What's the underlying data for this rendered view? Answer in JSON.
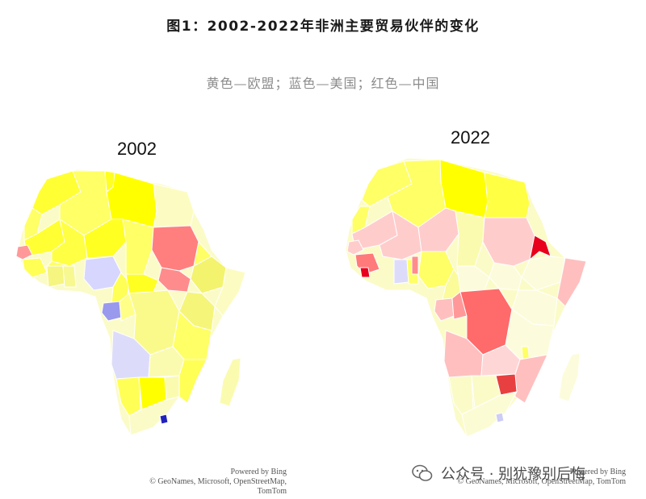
{
  "title": "图1：2002-2022年非洲主要贸易伙伴的变化",
  "subtitle": "黄色—欧盟；蓝色—美国；红色—中国",
  "maps": [
    {
      "year": "2002",
      "credit_line1": "Powered by Bing",
      "credit_line2": "© GeoNames, Microsoft, OpenStreetMap, TomTom"
    },
    {
      "year": "2022",
      "credit_line1": "Powered by Bing",
      "credit_line2": "© GeoNames, Microsoft, OpenStreetMap, TomTom"
    }
  ],
  "legend_colors": {
    "eu": "#ffff00",
    "us": "#3333cc",
    "china": "#e8001c"
  },
  "watermark": {
    "icon": "wechat-icon",
    "text": "公众号 · 别犹豫别后悔"
  }
}
